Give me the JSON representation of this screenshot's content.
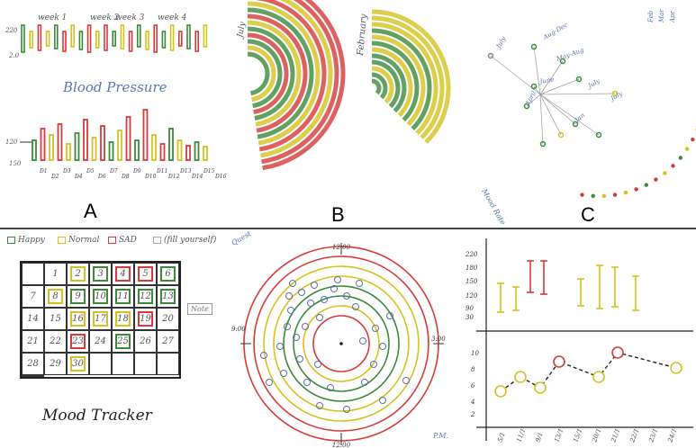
{
  "panel_labels": {
    "a": "A",
    "b": "B",
    "c": "C"
  },
  "panel_a": {
    "weeks": [
      "week 1",
      "week 2",
      "week 3",
      "week 4"
    ],
    "ytop": "220",
    "ybottom": "2.0",
    "title": "Blood Pressure",
    "low_axis_top": "120",
    "low_axis_bottom": "150",
    "day_labels": [
      "D1",
      "D2",
      "D3",
      "D4",
      "D5",
      "D6",
      "D7",
      "D8",
      "D9",
      "D10",
      "D11",
      "D12",
      "D13",
      "D14",
      "D15",
      "D16"
    ]
  },
  "panel_b": {
    "label_left": "July",
    "label_right": "February"
  },
  "panel_c": {
    "month_labels": [
      "July",
      "Aug-Dec",
      "May-Aug",
      "June",
      "July",
      "April",
      "July",
      "Jan"
    ],
    "side_labels": [
      "Feb",
      "Mar",
      "Apr"
    ],
    "corner_label": "Mood Rate"
  },
  "panel_d": {
    "legend": [
      {
        "label": "Happy",
        "color": "#3a8a3a"
      },
      {
        "label": "Normal",
        "color": "#d4c21e"
      },
      {
        "label": "SAD",
        "color": "#d63a3a"
      },
      {
        "label": "(fill yourself)",
        "color": "#aaaaaa"
      }
    ],
    "days": [
      "",
      "1",
      "2",
      "3",
      "4",
      "5",
      "6",
      "7",
      "8",
      "9",
      "10",
      "11",
      "12",
      "13",
      "14",
      "15",
      "16",
      "17",
      "18",
      "19",
      "20",
      "21",
      "22",
      "23",
      "24",
      "25",
      "26",
      "27",
      "28",
      "29",
      "30",
      "",
      "",
      "",
      "",
      ""
    ],
    "note": "Note",
    "title": "Mood Tracker"
  },
  "panel_e": {
    "corner_label": "Quest",
    "top_time": "12:00",
    "bottom_time": "12:00",
    "left_time": "9:00",
    "right_time": "3:00",
    "right_bottom": "P.M."
  },
  "panel_f": {
    "bp_ticks": [
      "220",
      "180",
      "150",
      "120",
      "90",
      "30"
    ],
    "mood_ticks": [
      "10",
      "8",
      "6",
      "4",
      "2"
    ],
    "dates": [
      "5/1",
      "11/1",
      "9/1",
      "13/1",
      "15/1",
      "20/1",
      "21/1",
      "22/1",
      "23/1",
      "24/1"
    ]
  }
}
